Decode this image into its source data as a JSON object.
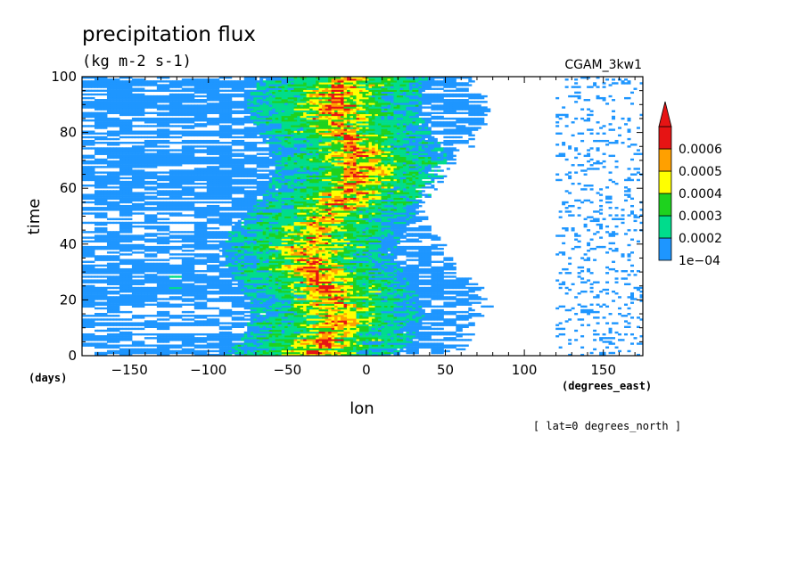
{
  "chart_data": {
    "type": "heatmap",
    "title": "precipitation flux",
    "units": "(kg m-2 s-1)",
    "dataset": "CGAM_3kw1",
    "xlabel": "lon",
    "x_units": "(degrees_east)",
    "ylabel": "time",
    "y_units": "(days)",
    "slice_note": "[ lat=0 degrees_north ]",
    "xlim": [
      -180,
      175
    ],
    "ylim": [
      0,
      100
    ],
    "x_ticks": [
      -150,
      -100,
      -50,
      0,
      50,
      100,
      150
    ],
    "x_tick_labels": [
      "−150",
      "−100",
      "−50",
      "0",
      "50",
      "100",
      "150"
    ],
    "y_ticks": [
      0,
      20,
      40,
      60,
      80,
      100
    ],
    "y_tick_labels": [
      "0",
      "20",
      "40",
      "60",
      "80",
      "100"
    ],
    "colorbar": {
      "levels": [
        0.0001,
        0.0002,
        0.0003,
        0.0004,
        0.0005,
        0.0006
      ],
      "level_labels": [
        "1e−04",
        "0.0002",
        "0.0003",
        "0.0004",
        "0.0005",
        "0.0006"
      ],
      "colors": [
        "#1e96ff",
        "#00dc8c",
        "#1ed21e",
        "#ffff00",
        "#ffa000",
        "#e61414"
      ],
      "extend": "max"
    },
    "active_regions": [
      {
        "lon_range": [
          -180,
          60
        ],
        "time_range": [
          0,
          100
        ],
        "min_level": 0.0001
      },
      {
        "lon_range": [
          -90,
          30
        ],
        "time_range": [
          0,
          100
        ],
        "min_level": 0.0003
      },
      {
        "lon_range": [
          -75,
          25
        ],
        "time_range": [
          0,
          100
        ],
        "max_level": 0.0006
      }
    ]
  }
}
